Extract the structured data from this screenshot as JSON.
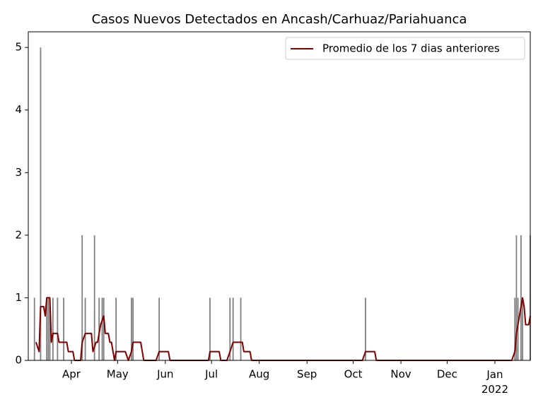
{
  "chart_data": {
    "type": "bar",
    "title": "Casos Nuevos Detectados en Ancash/Carhuaz/Pariahuanca",
    "xlim": [
      3,
      329
    ],
    "xticks": [
      {
        "value": 31,
        "label": "Apr"
      },
      {
        "value": 61,
        "label": "May"
      },
      {
        "value": 92,
        "label": "Jun"
      },
      {
        "value": 122,
        "label": "Jul"
      },
      {
        "value": 153,
        "label": "Aug"
      },
      {
        "value": 184,
        "label": "Sep"
      },
      {
        "value": 214,
        "label": "Oct"
      },
      {
        "value": 245,
        "label": "Nov"
      },
      {
        "value": 275,
        "label": "Dec"
      },
      {
        "value": 306,
        "label": "Jan\n2022"
      }
    ],
    "ylim": [
      0,
      5.25
    ],
    "yticks": [
      0,
      1,
      2,
      3,
      4,
      5
    ],
    "legend": "upper right",
    "series": [
      {
        "type": "bar",
        "color": "#808080",
        "x": [
          7,
          11,
          15,
          16,
          17,
          19,
          22,
          26,
          38,
          40,
          46,
          49,
          51,
          52,
          60,
          70,
          71,
          88,
          121,
          134,
          136,
          141,
          222,
          319,
          320,
          321,
          323,
          324,
          329
        ],
        "values": [
          1,
          5,
          1,
          1,
          1,
          1,
          1,
          1,
          2,
          1,
          2,
          1,
          1,
          1,
          1,
          1,
          1,
          1,
          1,
          1,
          1,
          1,
          1,
          1,
          2,
          1,
          2,
          1,
          2
        ]
      },
      {
        "type": "line",
        "name": "Promedio de los 7 dias anteriores",
        "color": "#800000",
        "x": [
          8,
          10,
          11,
          13,
          14,
          15,
          17,
          18,
          19,
          22,
          23,
          28,
          29,
          32,
          33,
          37,
          38,
          40,
          44,
          45,
          47,
          48,
          49,
          50,
          52,
          53,
          55,
          56,
          57,
          59,
          60,
          66,
          68,
          70,
          71,
          76,
          78,
          86,
          88,
          94,
          95,
          120,
          121,
          127,
          128,
          132,
          134,
          136,
          142,
          143,
          147,
          148,
          220,
          222,
          228,
          229,
          317,
          319,
          320,
          321,
          323,
          324,
          325,
          326,
          328,
          329
        ],
        "values": [
          0.29,
          0.14,
          0.86,
          0.86,
          0.71,
          1.0,
          1.0,
          0.29,
          0.43,
          0.43,
          0.29,
          0.29,
          0.14,
          0.14,
          0,
          0,
          0.29,
          0.43,
          0.43,
          0.14,
          0.29,
          0.29,
          0.43,
          0.57,
          0.71,
          0.43,
          0.43,
          0.29,
          0.29,
          0,
          0.14,
          0.14,
          0,
          0.14,
          0.29,
          0.29,
          0,
          0,
          0.14,
          0.14,
          0,
          0,
          0.14,
          0.14,
          0,
          0,
          0.14,
          0.29,
          0.29,
          0.14,
          0.14,
          0,
          0,
          0.14,
          0.14,
          0,
          0,
          0.14,
          0.43,
          0.57,
          0.86,
          1.0,
          0.86,
          0.57,
          0.57,
          0.71
        ]
      }
    ]
  }
}
